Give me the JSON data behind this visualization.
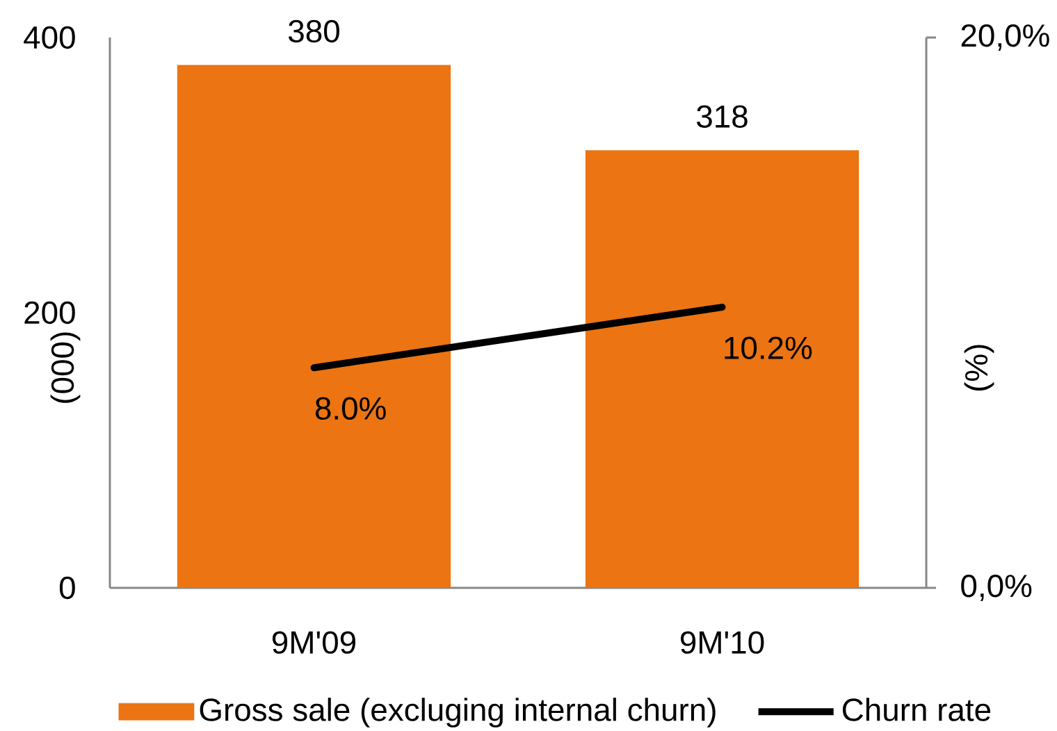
{
  "chart_data": {
    "type": "bar",
    "categories": [
      "9M'09",
      "9M'10"
    ],
    "ylabel": "(000)",
    "y2label": "(%)",
    "ylim": [
      0,
      400
    ],
    "yticks": [
      0,
      200,
      400
    ],
    "y2lim": [
      0,
      20
    ],
    "y2ticks": [
      {
        "value": 0,
        "label": "0,0%"
      },
      {
        "value": 20,
        "label": "20,0%"
      }
    ],
    "series": [
      {
        "name": "Gross sale (excluging internal churn)",
        "color": "#ec7412",
        "values": [
          380,
          318
        ],
        "value_labels": [
          "380",
          "318"
        ]
      },
      {
        "name": "Churn rate",
        "type": "line",
        "axis": "y2",
        "color": "#000000",
        "values": [
          8.0,
          10.2
        ],
        "value_labels": [
          "8.0%",
          "10.2%"
        ]
      }
    ],
    "legend": "bottom"
  }
}
